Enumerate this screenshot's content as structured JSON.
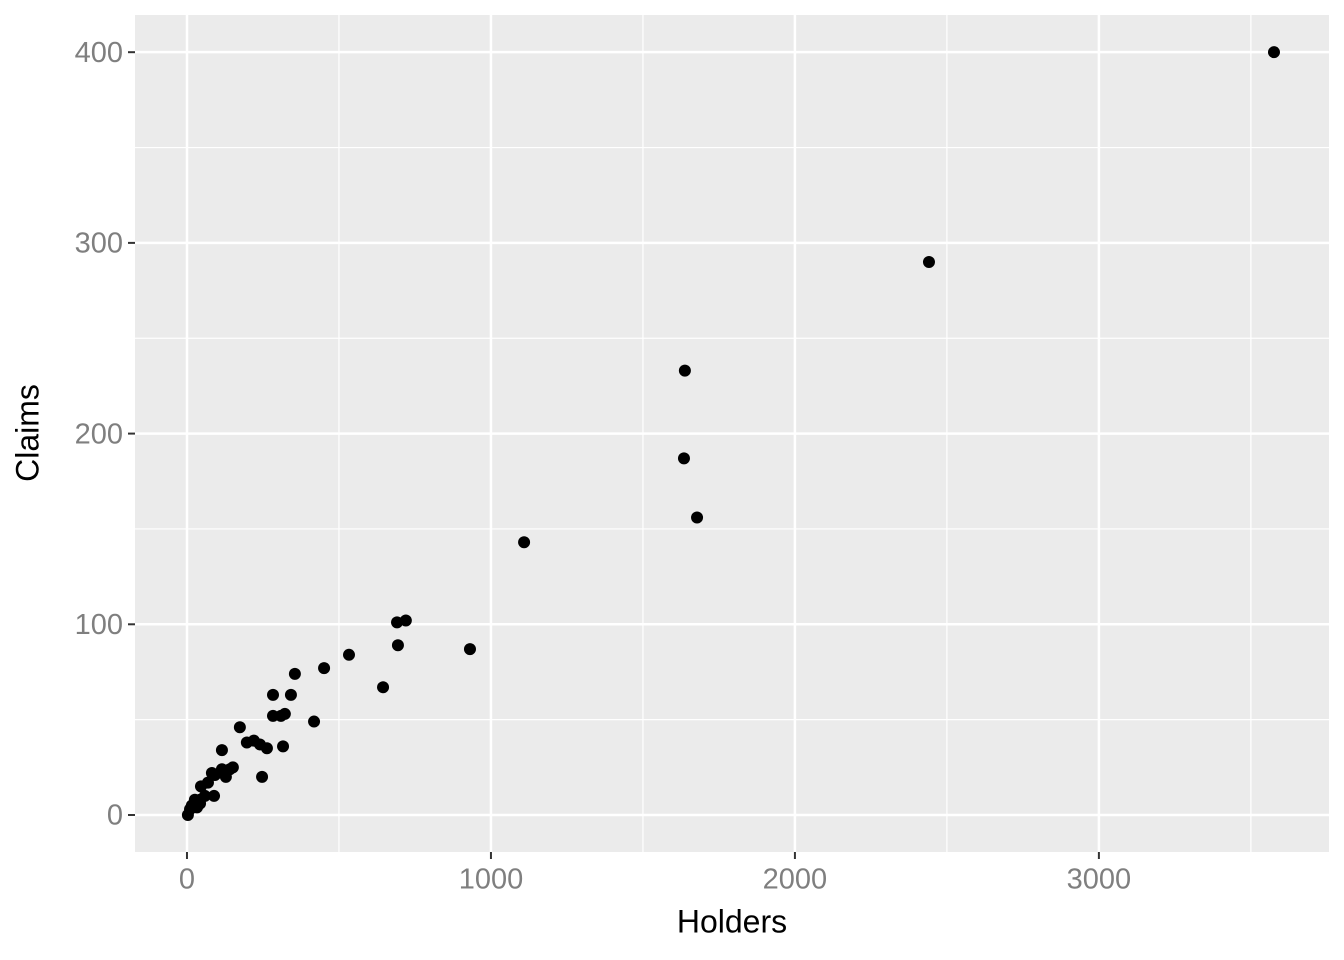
{
  "chart_data": {
    "type": "scatter",
    "x_label": "Holders",
    "y_label": "Claims",
    "x": [
      3576,
      2441,
      1638,
      1635,
      1678,
      1109,
      931,
      720,
      691,
      694,
      645,
      533,
      451,
      418,
      355,
      342,
      283,
      283,
      322,
      309,
      316,
      263,
      240,
      220,
      197,
      174,
      247,
      115,
      151,
      141,
      128,
      115,
      92,
      82,
      69,
      46,
      89,
      59,
      43,
      26,
      20,
      33,
      10,
      3,
      16,
      43
    ],
    "values": [
      400,
      290,
      233,
      187,
      156,
      143,
      87,
      102,
      101,
      89,
      67,
      84,
      77,
      49,
      74,
      63,
      63,
      52,
      53,
      52,
      36,
      35,
      37,
      39,
      38,
      46,
      20,
      34,
      25,
      24,
      20,
      24,
      21,
      22,
      17,
      15,
      10,
      10,
      8,
      8,
      5,
      4,
      3,
      0,
      5,
      6
    ],
    "color": "#000000",
    "xlim": [
      -171,
      3757
    ],
    "ylim": [
      -19.4,
      419.5
    ],
    "xticks": [
      0,
      1000,
      2000,
      3000
    ],
    "yticks": [
      0,
      100,
      200,
      300,
      400
    ],
    "x_minor_ticks": [
      500,
      1500,
      2500,
      3500
    ],
    "y_minor_ticks": [
      50,
      150,
      250,
      350
    ],
    "grid": true
  }
}
